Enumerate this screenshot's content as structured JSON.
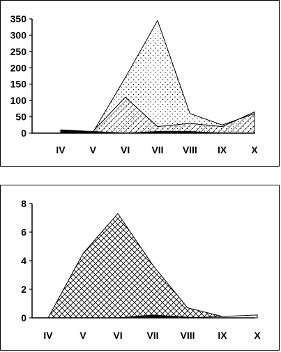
{
  "chart_data": [
    {
      "type": "area",
      "categories": [
        "IV",
        "V",
        "VI",
        "VII",
        "VIII",
        "IX",
        "X"
      ],
      "ylim": [
        0,
        350
      ],
      "yticks": [
        0,
        50,
        100,
        150,
        200,
        250,
        300,
        350
      ],
      "grid": false,
      "legend": "none",
      "series": [
        {
          "values": [
            5,
            5,
            110,
            20,
            30,
            20,
            65
          ],
          "pattern": "diagonal"
        },
        {
          "values": [
            8,
            3,
            170,
            345,
            60,
            25,
            60
          ],
          "pattern": "dots"
        },
        {
          "values": [
            10,
            5,
            0,
            5,
            5,
            0,
            0
          ],
          "pattern": "solid"
        }
      ]
    },
    {
      "type": "area",
      "categories": [
        "IV",
        "V",
        "VI",
        "VII",
        "VIII",
        "IX",
        "X"
      ],
      "ylim": [
        0,
        8
      ],
      "yticks": [
        0,
        2,
        4,
        6,
        8
      ],
      "grid": false,
      "legend": "none",
      "series": [
        {
          "values": [
            0,
            4.5,
            7.3,
            3.7,
            0.7,
            0.1,
            0.15
          ],
          "pattern": "crosshatch"
        },
        {
          "values": [
            0,
            0,
            0,
            0.2,
            0.05,
            0,
            0
          ],
          "pattern": "solid"
        },
        {
          "values": [
            0,
            0,
            0,
            0,
            0,
            0.1,
            0.2
          ],
          "pattern": "empty"
        }
      ]
    }
  ]
}
